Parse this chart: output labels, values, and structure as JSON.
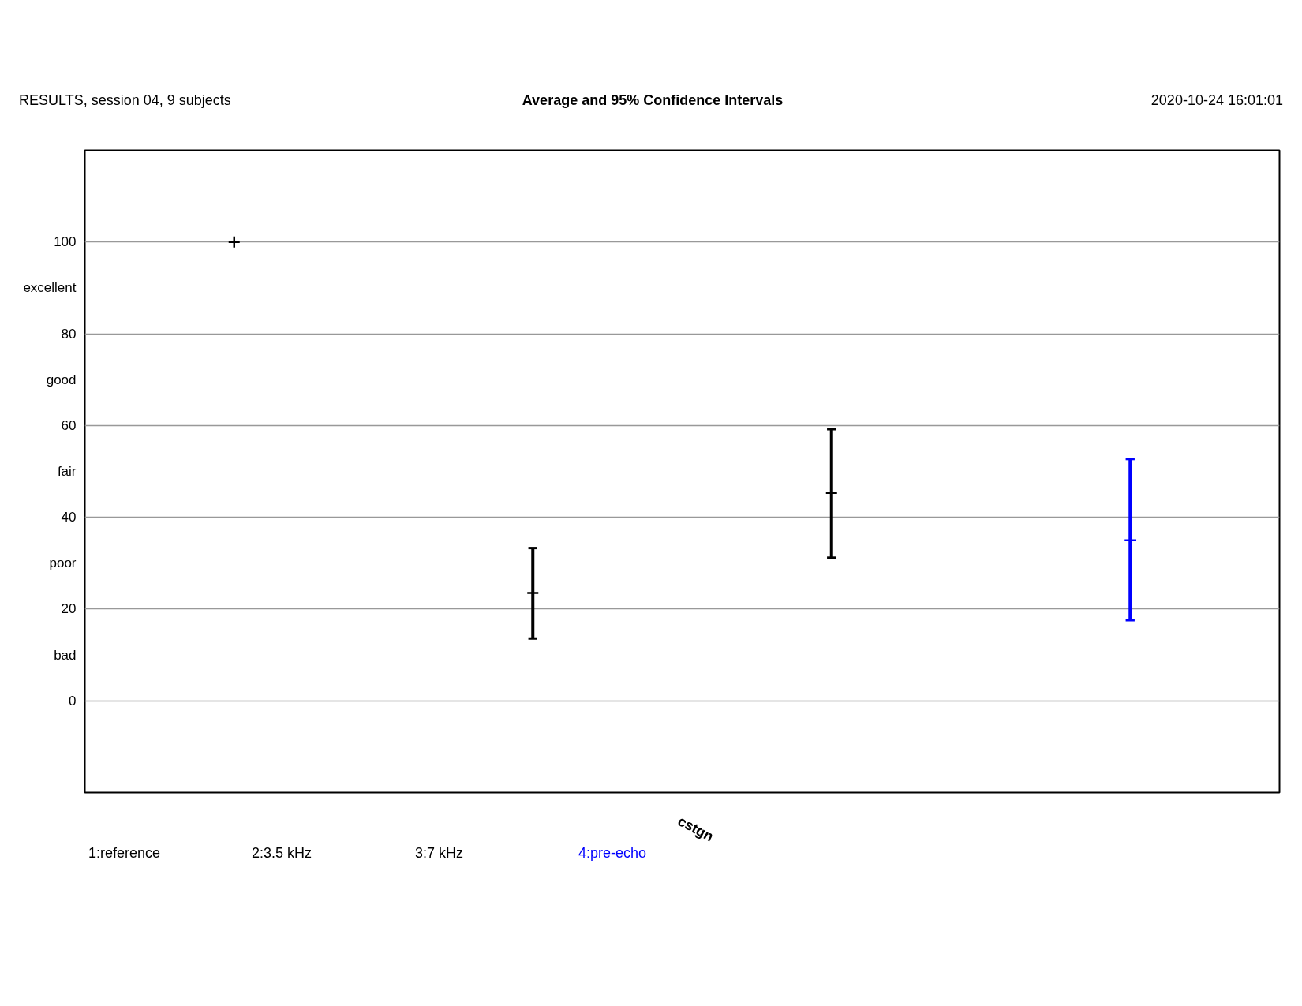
{
  "chart_data": {
    "type": "scatter",
    "title": "Average and 95% Confidence Intervals",
    "annotations": [
      "RESULTS,  session 04,  9 subjects",
      "2020-10-24 16:01:01",
      "1:reference",
      "2:3.5 kHz",
      "3:7 kHz",
      "4:pre-echo"
    ],
    "xlabel": "cstgn",
    "categories": [
      null,
      null,
      null,
      null
    ],
    "values": [
      100,
      23.5,
      45.3,
      35.0
    ],
    "errors": [
      0,
      [
        13.6,
        33.3
      ],
      [
        31.2,
        59.2
      ],
      [
        17.6,
        52.7
      ]
    ],
    "colors": [
      "#000000",
      "#000000",
      "#000000",
      "#0000ff"
    ],
    "ylim": [
      -20,
      120
    ],
    "yticks": [
      0,
      {
        "value": 10,
        "label": "bad"
      },
      20,
      {
        "value": 30,
        "label": "poor"
      },
      40,
      {
        "value": 50,
        "label": "fair"
      },
      60,
      {
        "value": 70,
        "label": "good"
      },
      80,
      {
        "value": 90,
        "label": "excellent"
      },
      100
    ],
    "grid": "y",
    "tick_labels": "y",
    "marker": "cross"
  }
}
